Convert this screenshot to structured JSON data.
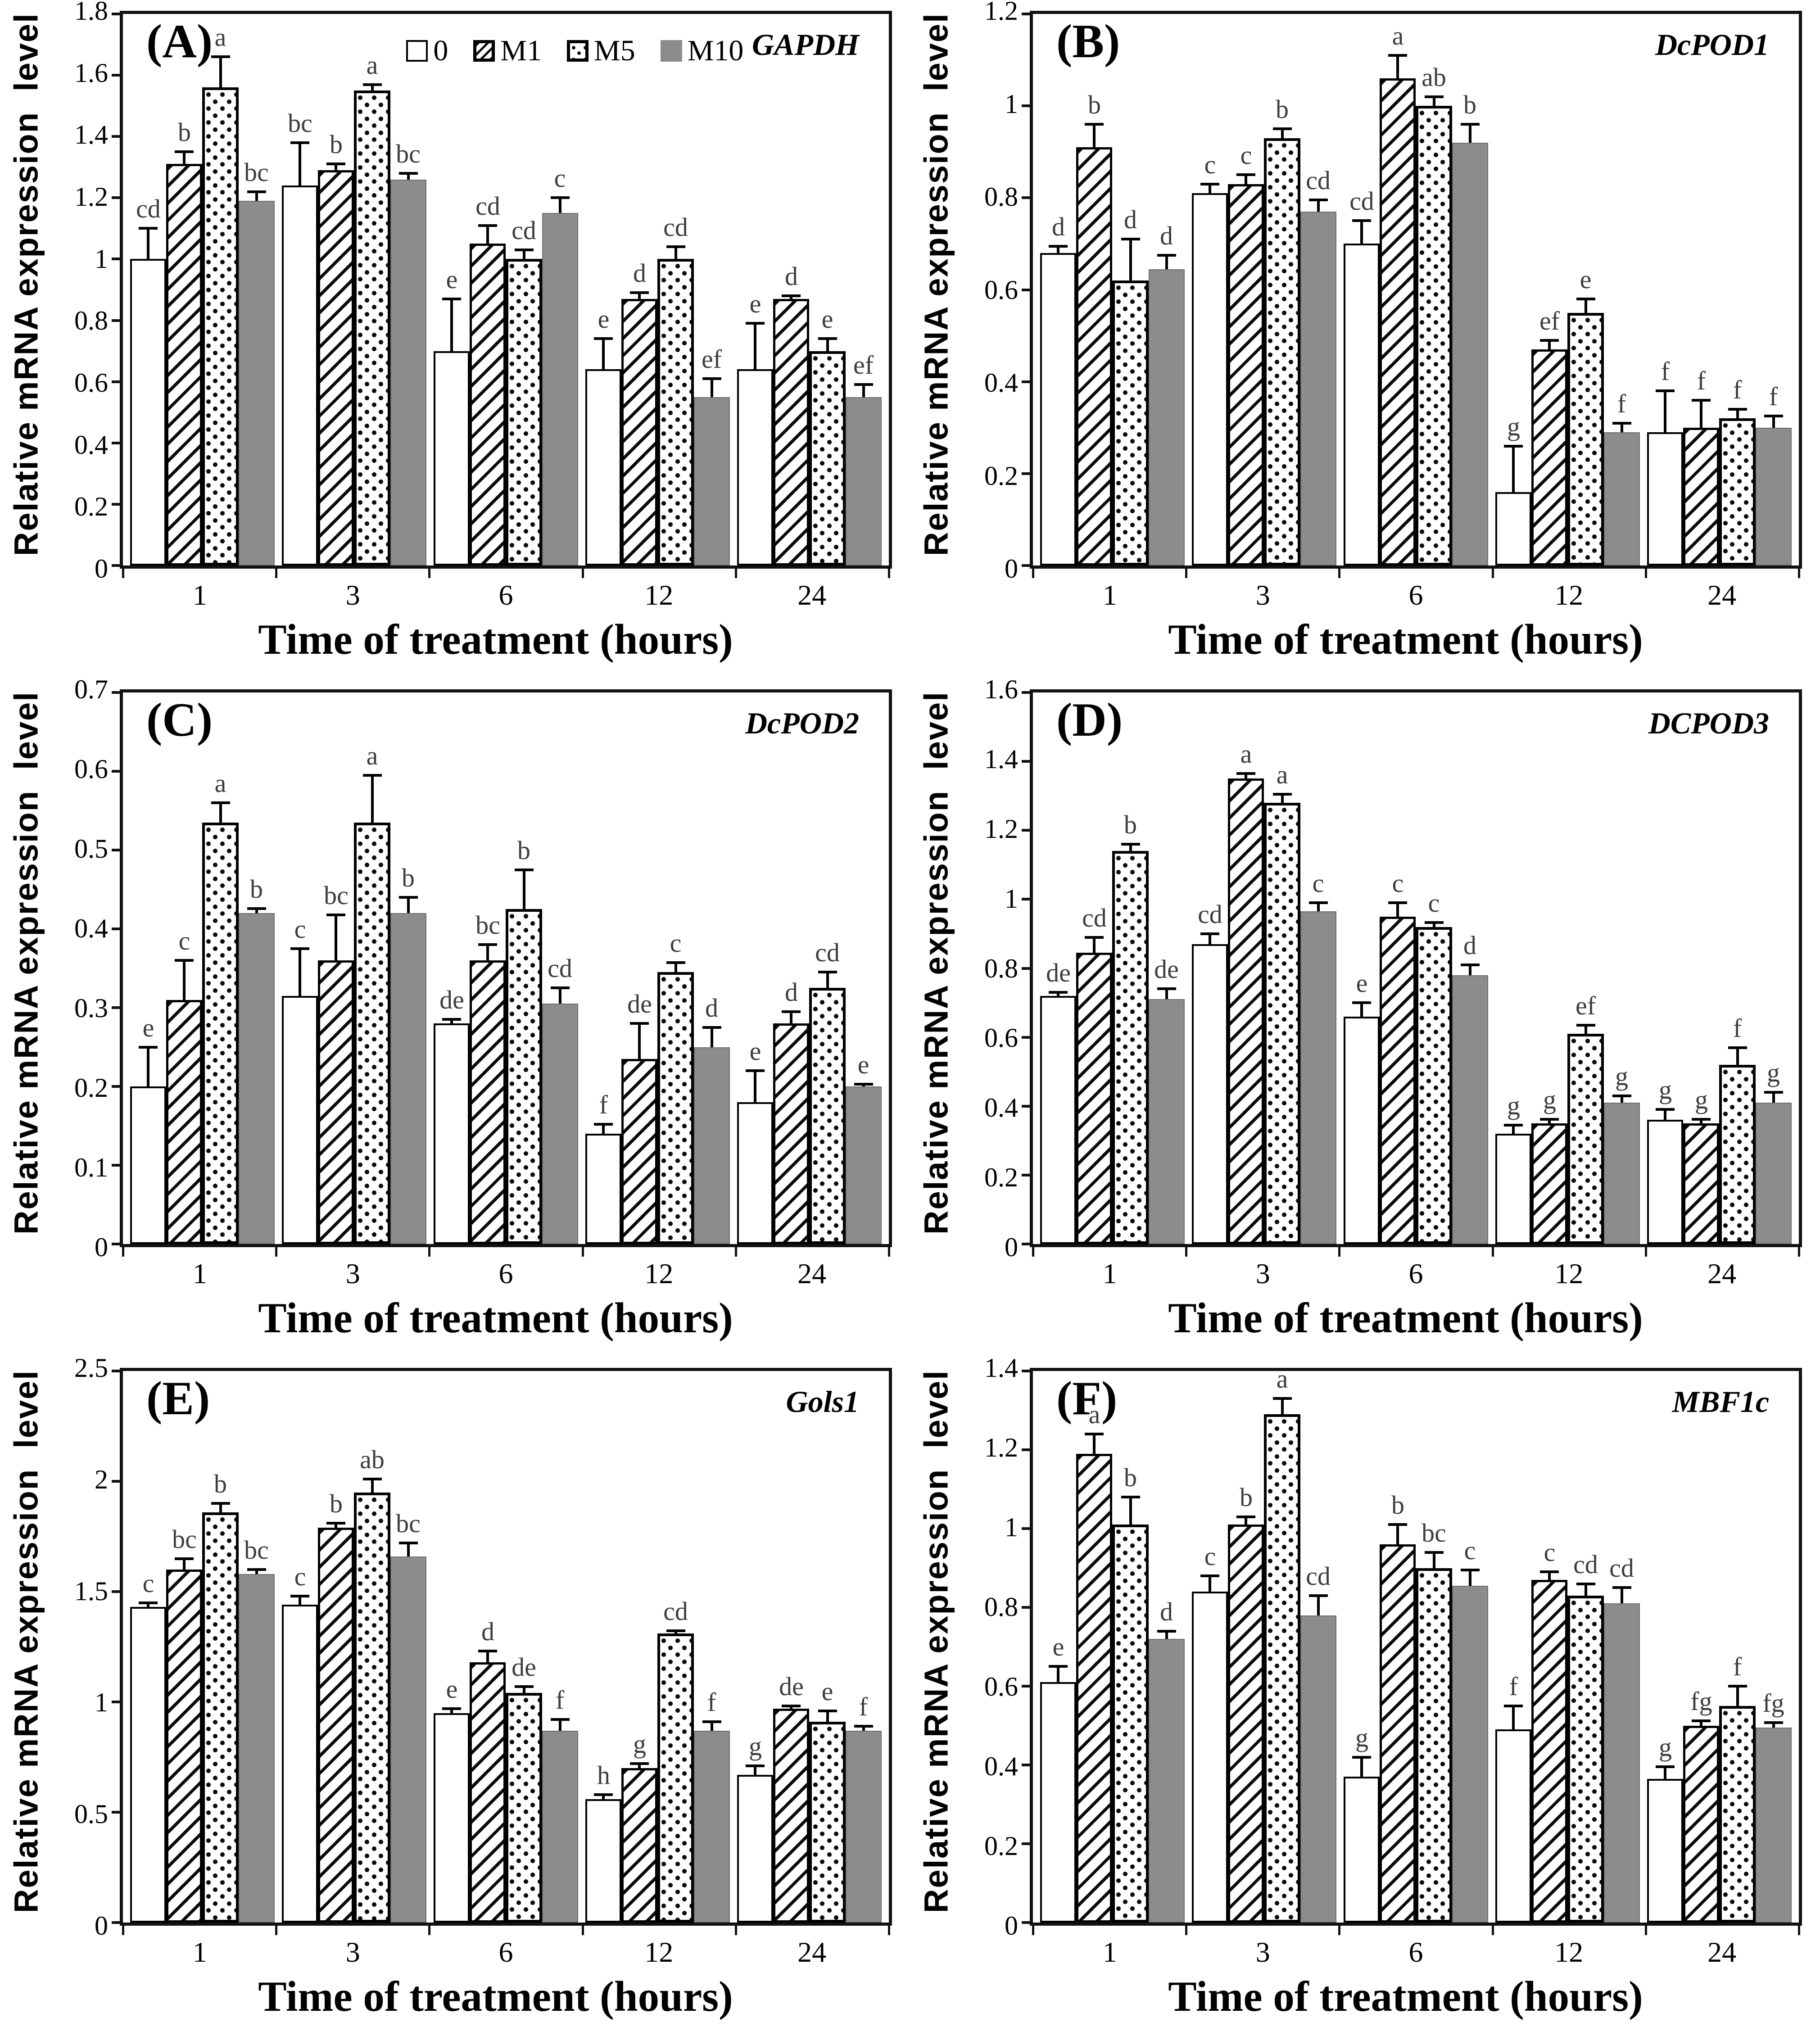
{
  "figure": {
    "xlabel": "Time of treatment (hours)",
    "ylabel": "Relative mRNA expression  level"
  },
  "legend": {
    "items": [
      {
        "label": "0",
        "pattern": "plain"
      },
      {
        "label": "M1",
        "pattern": "hatch"
      },
      {
        "label": "M5",
        "pattern": "dots"
      },
      {
        "label": "M10",
        "pattern": "gray"
      }
    ]
  },
  "colors": {
    "bar_gray": "#8c8c8c",
    "axis": "#111111",
    "letter": "#3d3d3d"
  },
  "chart_data": [
    {
      "type": "bar",
      "panel_label": "(A)",
      "gene": "GAPDH",
      "show_legend": true,
      "categories": [
        "1",
        "3",
        "6",
        "12",
        "24"
      ],
      "ymax": 1.8,
      "ytick_labels": [
        "1.8",
        "1.6",
        "1.4",
        "1.2",
        "1",
        "0.8",
        "0.6",
        "0.4",
        "0.2",
        "0"
      ],
      "series": [
        {
          "name": "0",
          "pattern": "plain",
          "values": [
            1.0,
            1.24,
            0.7,
            0.64,
            0.64
          ],
          "errors": [
            0.1,
            0.14,
            0.17,
            0.1,
            0.15
          ],
          "letters": [
            "cd",
            "bc",
            "e",
            "e",
            "e"
          ]
        },
        {
          "name": "M1",
          "pattern": "hatch",
          "values": [
            1.31,
            1.29,
            1.05,
            0.87,
            0.87
          ],
          "errors": [
            0.04,
            0.02,
            0.06,
            0.02,
            0.01
          ],
          "letters": [
            "b",
            "b",
            "cd",
            "d",
            "d"
          ]
        },
        {
          "name": "M5",
          "pattern": "dots",
          "values": [
            1.56,
            1.55,
            1.0,
            1.0,
            0.7
          ],
          "errors": [
            0.1,
            0.02,
            0.03,
            0.04,
            0.04
          ],
          "letters": [
            "a",
            "a",
            "cd",
            "cd",
            "e"
          ]
        },
        {
          "name": "M10",
          "pattern": "gray",
          "values": [
            1.19,
            1.26,
            1.15,
            0.55,
            0.55
          ],
          "errors": [
            0.03,
            0.02,
            0.05,
            0.06,
            0.04
          ],
          "letters": [
            "bc",
            "bc",
            "c",
            "ef",
            "ef"
          ]
        }
      ]
    },
    {
      "type": "bar",
      "panel_label": "(B)",
      "gene": "DcPOD1",
      "show_legend": false,
      "categories": [
        "1",
        "3",
        "6",
        "12",
        "24"
      ],
      "ymax": 1.2,
      "ytick_labels": [
        "1.2",
        "1",
        "0.8",
        "0.6",
        "0.4",
        "0.2",
        "0"
      ],
      "series": [
        {
          "name": "0",
          "pattern": "plain",
          "values": [
            0.68,
            0.81,
            0.7,
            0.16,
            0.29
          ],
          "errors": [
            0.015,
            0.02,
            0.05,
            0.1,
            0.09
          ],
          "letters": [
            "d",
            "c",
            "cd",
            "g",
            "f"
          ]
        },
        {
          "name": "M1",
          "pattern": "hatch",
          "values": [
            0.91,
            0.83,
            1.06,
            0.47,
            0.3
          ],
          "errors": [
            0.05,
            0.02,
            0.05,
            0.02,
            0.06
          ],
          "letters": [
            "b",
            "c",
            "a",
            "ef",
            "f"
          ]
        },
        {
          "name": "M5",
          "pattern": "dots",
          "values": [
            0.62,
            0.93,
            1.0,
            0.55,
            0.32
          ],
          "errors": [
            0.09,
            0.02,
            0.02,
            0.03,
            0.02
          ],
          "letters": [
            "d",
            "b",
            "ab",
            "e",
            "f"
          ]
        },
        {
          "name": "M10",
          "pattern": "gray",
          "values": [
            0.645,
            0.77,
            0.92,
            0.29,
            0.3
          ],
          "errors": [
            0.03,
            0.025,
            0.04,
            0.02,
            0.025
          ],
          "letters": [
            "d",
            "cd",
            "b",
            "f",
            "f"
          ]
        }
      ]
    },
    {
      "type": "bar",
      "panel_label": "(C)",
      "gene": "DcPOD2",
      "show_legend": false,
      "categories": [
        "1",
        "3",
        "6",
        "12",
        "24"
      ],
      "ymax": 0.7,
      "ytick_labels": [
        "0.7",
        "0.6",
        "0.5",
        "0.4",
        "0.3",
        "0.2",
        "0.1",
        "0"
      ],
      "series": [
        {
          "name": "0",
          "pattern": "plain",
          "values": [
            0.2,
            0.315,
            0.28,
            0.14,
            0.18
          ],
          "errors": [
            0.05,
            0.06,
            0.005,
            0.012,
            0.04
          ],
          "letters": [
            "e",
            "c",
            "de",
            "f",
            "e"
          ]
        },
        {
          "name": "M1",
          "pattern": "hatch",
          "values": [
            0.31,
            0.36,
            0.36,
            0.235,
            0.28
          ],
          "errors": [
            0.05,
            0.058,
            0.02,
            0.045,
            0.015
          ],
          "letters": [
            "c",
            "bc",
            "bc",
            "de",
            "d"
          ]
        },
        {
          "name": "M5",
          "pattern": "dots",
          "values": [
            0.535,
            0.535,
            0.425,
            0.345,
            0.325
          ],
          "errors": [
            0.025,
            0.06,
            0.05,
            0.012,
            0.02
          ],
          "letters": [
            "a",
            "a",
            "b",
            "c",
            "cd"
          ]
        },
        {
          "name": "M10",
          "pattern": "gray",
          "values": [
            0.42,
            0.42,
            0.305,
            0.25,
            0.2
          ],
          "errors": [
            0.006,
            0.02,
            0.02,
            0.025,
            0.003
          ],
          "letters": [
            "b",
            "b",
            "cd",
            "d",
            "e"
          ]
        }
      ]
    },
    {
      "type": "bar",
      "panel_label": "(D)",
      "gene": "DCPOD3",
      "show_legend": false,
      "categories": [
        "1",
        "3",
        "6",
        "12",
        "24"
      ],
      "ymax": 1.6,
      "ytick_labels": [
        "1.6",
        "1.4",
        "1.2",
        "1",
        "0.8",
        "0.6",
        "0.4",
        "0.2",
        "0"
      ],
      "series": [
        {
          "name": "0",
          "pattern": "plain",
          "values": [
            0.72,
            0.87,
            0.66,
            0.32,
            0.36
          ],
          "errors": [
            0.01,
            0.03,
            0.04,
            0.025,
            0.03
          ],
          "letters": [
            "de",
            "cd",
            "e",
            "g",
            "g"
          ]
        },
        {
          "name": "M1",
          "pattern": "hatch",
          "values": [
            0.845,
            1.35,
            0.95,
            0.35,
            0.35
          ],
          "errors": [
            0.045,
            0.015,
            0.04,
            0.012,
            0.012
          ],
          "letters": [
            "cd",
            "a",
            "c",
            "g",
            "g"
          ]
        },
        {
          "name": "M5",
          "pattern": "dots",
          "values": [
            1.14,
            1.28,
            0.92,
            0.61,
            0.52
          ],
          "errors": [
            0.02,
            0.025,
            0.012,
            0.025,
            0.05
          ],
          "letters": [
            "b",
            "a",
            "c",
            "ef",
            "f"
          ]
        },
        {
          "name": "M10",
          "pattern": "gray",
          "values": [
            0.71,
            0.965,
            0.78,
            0.41,
            0.41
          ],
          "errors": [
            0.03,
            0.025,
            0.03,
            0.02,
            0.03
          ],
          "letters": [
            "de",
            "c",
            "d",
            "g",
            "g"
          ]
        }
      ]
    },
    {
      "type": "bar",
      "panel_label": "(E)",
      "gene": "Gols1",
      "show_legend": false,
      "categories": [
        "1",
        "3",
        "6",
        "12",
        "24"
      ],
      "ymax": 2.5,
      "ytick_labels": [
        "2.5",
        "2",
        "1.5",
        "1",
        "0.5",
        "0"
      ],
      "series": [
        {
          "name": "0",
          "pattern": "plain",
          "values": [
            1.43,
            1.44,
            0.95,
            0.56,
            0.67
          ],
          "errors": [
            0.02,
            0.04,
            0.02,
            0.02,
            0.04
          ],
          "letters": [
            "c",
            "c",
            "e",
            "h",
            "g"
          ]
        },
        {
          "name": "M1",
          "pattern": "hatch",
          "values": [
            1.6,
            1.79,
            1.18,
            0.7,
            0.97
          ],
          "errors": [
            0.05,
            0.02,
            0.05,
            0.02,
            0.012
          ],
          "letters": [
            "bc",
            "b",
            "d",
            "g",
            "de"
          ]
        },
        {
          "name": "M5",
          "pattern": "dots",
          "values": [
            1.86,
            1.95,
            1.04,
            1.31,
            0.91
          ],
          "errors": [
            0.04,
            0.06,
            0.03,
            0.012,
            0.05
          ],
          "letters": [
            "b",
            "ab",
            "de",
            "cd",
            "e"
          ]
        },
        {
          "name": "M10",
          "pattern": "gray",
          "values": [
            1.58,
            1.66,
            0.87,
            0.87,
            0.87
          ],
          "errors": [
            0.02,
            0.06,
            0.05,
            0.04,
            0.02
          ],
          "letters": [
            "bc",
            "bc",
            "f",
            "f",
            "f"
          ]
        }
      ]
    },
    {
      "type": "bar",
      "panel_label": "(F)",
      "gene": "MBF1c",
      "show_legend": false,
      "categories": [
        "1",
        "3",
        "6",
        "12",
        "24"
      ],
      "ymax": 1.4,
      "ytick_labels": [
        "1.4",
        "1.2",
        "1",
        "0.8",
        "0.6",
        "0.4",
        "0.2",
        "0"
      ],
      "series": [
        {
          "name": "0",
          "pattern": "plain",
          "values": [
            0.61,
            0.84,
            0.37,
            0.49,
            0.365
          ],
          "errors": [
            0.04,
            0.04,
            0.05,
            0.06,
            0.03
          ],
          "letters": [
            "e",
            "c",
            "g",
            "f",
            "g"
          ]
        },
        {
          "name": "M1",
          "pattern": "hatch",
          "values": [
            1.19,
            1.01,
            0.96,
            0.87,
            0.5
          ],
          "errors": [
            0.05,
            0.02,
            0.05,
            0.02,
            0.012
          ],
          "letters": [
            "a",
            "b",
            "b",
            "c",
            "fg"
          ]
        },
        {
          "name": "M5",
          "pattern": "dots",
          "values": [
            1.01,
            1.29,
            0.9,
            0.83,
            0.55
          ],
          "errors": [
            0.07,
            0.04,
            0.04,
            0.03,
            0.05
          ],
          "letters": [
            "b",
            "a",
            "bc",
            "cd",
            "f"
          ]
        },
        {
          "name": "M10",
          "pattern": "gray",
          "values": [
            0.72,
            0.78,
            0.855,
            0.81,
            0.495
          ],
          "errors": [
            0.02,
            0.05,
            0.04,
            0.04,
            0.012
          ],
          "letters": [
            "d",
            "cd",
            "c",
            "cd",
            "fg"
          ]
        }
      ]
    }
  ]
}
